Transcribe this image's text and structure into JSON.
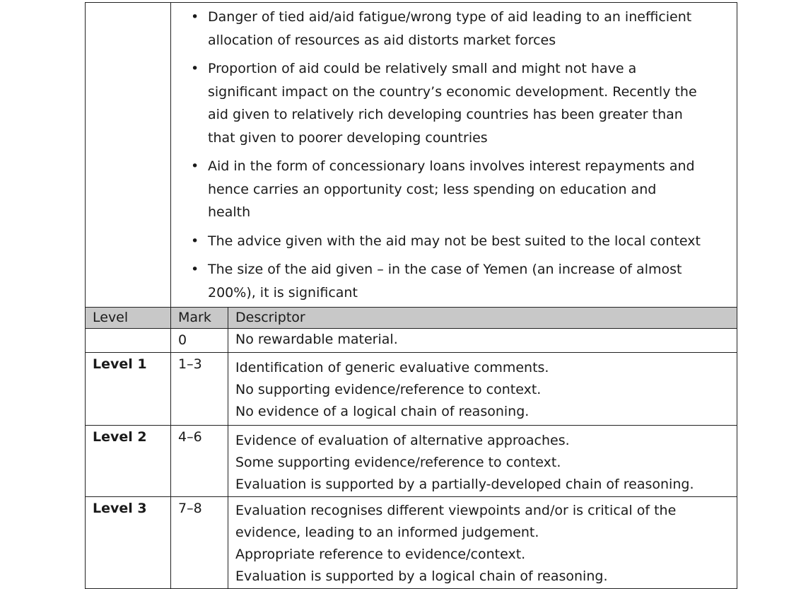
{
  "bullets": [
    "Danger of tied aid/aid fatigue/wrong type of aid leading to an inefficient allocation of resources as aid distorts market forces",
    "Proportion of aid could be relatively small and might not have a significant impact on the country’s economic development. Recently the aid given to relatively rich developing countries has been greater than that given to poorer developing countries",
    "Aid in the form of concessionary loans involves interest repayments and hence carries an opportunity cost; less spending on education and health",
    "The advice given with the aid may not be best suited to the local context",
    "The size of the aid given – in the case of Yemen (an increase of almost 200%), it is significant"
  ],
  "header": {
    "level": "Level",
    "mark": "Mark",
    "descriptor": "Descriptor"
  },
  "rows": [
    {
      "level": "",
      "mark": "0",
      "descriptors": [
        "No rewardable material."
      ]
    },
    {
      "level": "Level 1",
      "mark": "1–3",
      "descriptors": [
        "Identification of generic evaluative comments.",
        "No supporting evidence/reference to context.",
        "No evidence of a logical chain of reasoning."
      ]
    },
    {
      "level": "Level 2",
      "mark": "4–6",
      "descriptors": [
        "Evidence of evaluation of alternative approaches.",
        "Some supporting evidence/reference to context.",
        "Evaluation is supported by a partially-developed chain of reasoning."
      ]
    },
    {
      "level": "Level 3",
      "mark": "7–8",
      "descriptors": [
        "Evaluation recognises different viewpoints and/or is critical of the evidence, leading to an informed judgement.",
        "Appropriate reference to evidence/context.",
        "Evaluation is supported by a logical chain of reasoning."
      ]
    }
  ]
}
